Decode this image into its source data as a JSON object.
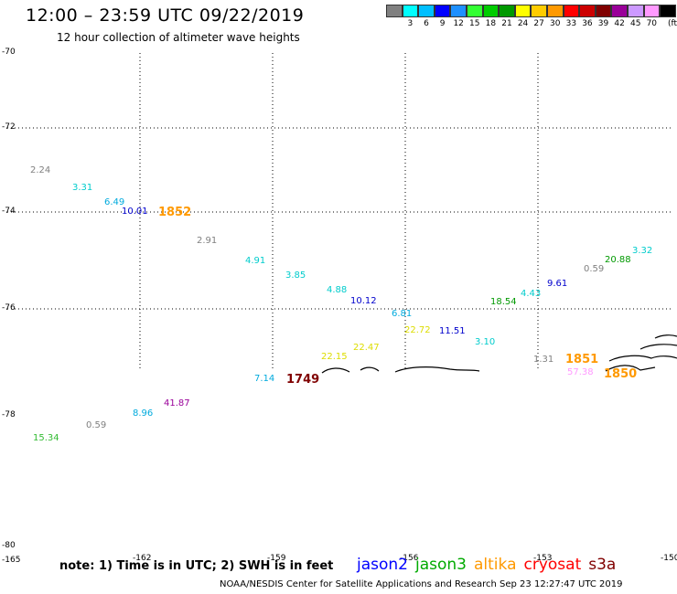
{
  "header": {
    "title": "12:00 – 23:59 UTC 09/22/2019",
    "subtitle": "12 hour collection of altimeter wave heights"
  },
  "color_legend": {
    "unit": "(ft)",
    "bins": [
      {
        "color": "#808080",
        "label": ""
      },
      {
        "color": "#00ffff",
        "label": "3"
      },
      {
        "color": "#00bfff",
        "label": "6"
      },
      {
        "color": "#0000ff",
        "label": "9"
      },
      {
        "color": "#1e90ff",
        "label": "12"
      },
      {
        "color": "#33ff33",
        "label": "15"
      },
      {
        "color": "#00cc00",
        "label": "18"
      },
      {
        "color": "#009900",
        "label": "21"
      },
      {
        "color": "#ffff00",
        "label": "24"
      },
      {
        "color": "#ffcc00",
        "label": "27"
      },
      {
        "color": "#ff9900",
        "label": "30"
      },
      {
        "color": "#ff0000",
        "label": "33"
      },
      {
        "color": "#cc0000",
        "label": "36"
      },
      {
        "color": "#800000",
        "label": "39"
      },
      {
        "color": "#990099",
        "label": "42"
      },
      {
        "color": "#cc99ff",
        "label": "45"
      },
      {
        "color": "#ff99ff",
        "label": "70"
      },
      {
        "color": "#000000",
        "label": ""
      }
    ]
  },
  "axes": {
    "lat_labels": [
      "-70",
      "-72",
      "-74",
      "-76",
      "-78",
      "-78",
      "-80"
    ],
    "lon_labels": [
      "-165",
      "-162",
      "-159",
      "-156",
      "-153",
      "-150"
    ]
  },
  "observations": [
    {
      "text": "2.24",
      "color": "#808080"
    },
    {
      "text": "3.31",
      "color": "#00cccc"
    },
    {
      "text": "6.49",
      "color": "#00aadd"
    },
    {
      "text": "10.01",
      "color": "#0000cc"
    },
    {
      "text": "1852",
      "color": "#ff9900",
      "kind": "time"
    },
    {
      "text": "2.91",
      "color": "#808080"
    },
    {
      "text": "4.91",
      "color": "#00cccc"
    },
    {
      "text": "3.85",
      "color": "#00cccc"
    },
    {
      "text": "4.88",
      "color": "#00cccc"
    },
    {
      "text": "10.12",
      "color": "#0000cc"
    },
    {
      "text": "6.81",
      "color": "#00aadd"
    },
    {
      "text": "22.72",
      "color": "#dddd00"
    },
    {
      "text": "11.51",
      "color": "#0000cc"
    },
    {
      "text": "3.10",
      "color": "#00cccc"
    },
    {
      "text": "22.15",
      "color": "#dddd00"
    },
    {
      "text": "22.47",
      "color": "#dddd00"
    },
    {
      "text": "7.14",
      "color": "#00aadd"
    },
    {
      "text": "1749",
      "color": "#800000",
      "kind": "time"
    },
    {
      "text": "1.31",
      "color": "#808080"
    },
    {
      "text": "1851",
      "color": "#ff9900",
      "kind": "time"
    },
    {
      "text": "57.38",
      "color": "#ff99ff"
    },
    {
      "text": "1850",
      "color": "#ff9900",
      "kind": "time"
    },
    {
      "text": "18.54",
      "color": "#009900"
    },
    {
      "text": "4.43",
      "color": "#00cccc"
    },
    {
      "text": "9.61",
      "color": "#0000cc"
    },
    {
      "text": "0.59",
      "color": "#808080"
    },
    {
      "text": "20.88",
      "color": "#009900"
    },
    {
      "text": "3.32",
      "color": "#00cccc"
    },
    {
      "text": "41.87",
      "color": "#990099"
    },
    {
      "text": "8.96",
      "color": "#00aadd"
    },
    {
      "text": "0.59",
      "color": "#808080"
    },
    {
      "text": "15.34",
      "color": "#33bb33"
    }
  ],
  "footer": {
    "note": "note: 1) Time is in UTC; 2) SWH is in feet",
    "satellites": [
      {
        "name": "jason2",
        "color": "#0000ff"
      },
      {
        "name": "jason3",
        "color": "#00aa00"
      },
      {
        "name": "altika",
        "color": "#ff9900"
      },
      {
        "name": "cryosat",
        "color": "#ff0000"
      },
      {
        "name": "s3a",
        "color": "#800000"
      }
    ],
    "credit": "NOAA/NESDIS Center for Satellite Applications and Research    Sep 23 12:27:47 UTC 2019"
  }
}
